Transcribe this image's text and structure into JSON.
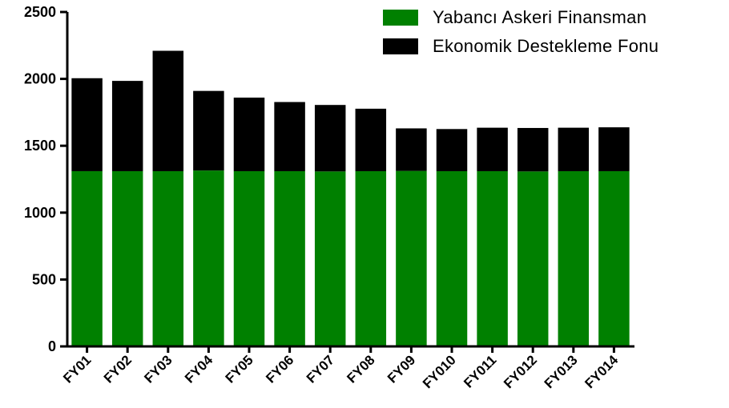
{
  "chart_data": {
    "type": "bar",
    "stacked": true,
    "categories": [
      "FY01",
      "FY02",
      "FY03",
      "FY04",
      "FY05",
      "FY06",
      "FY07",
      "FY08",
      "FY09",
      "FY010",
      "FY011",
      "FY012",
      "FY013",
      "FY014"
    ],
    "series": [
      {
        "name": "Yabancı Askeri Finansman",
        "color": "#008000",
        "values": [
          1310,
          1310,
          1310,
          1315,
          1310,
          1310,
          1308,
          1310,
          1312,
          1310,
          1310,
          1308,
          1310,
          1310
        ]
      },
      {
        "name": "Ekonomik Destekleme Fonu",
        "color": "#000000",
        "values": [
          695,
          675,
          900,
          595,
          550,
          517,
          497,
          467,
          318,
          315,
          325,
          325,
          325,
          328
        ]
      }
    ],
    "ylim": [
      0,
      2500
    ],
    "yticks": [
      0,
      500,
      1000,
      1500,
      2000,
      2500
    ],
    "ytick_labels": [
      "0",
      "500",
      "1000",
      "1500",
      "2000",
      "2500"
    ],
    "title": "",
    "xlabel": "",
    "ylabel": "",
    "grid": false,
    "legend_position": "top-right"
  }
}
